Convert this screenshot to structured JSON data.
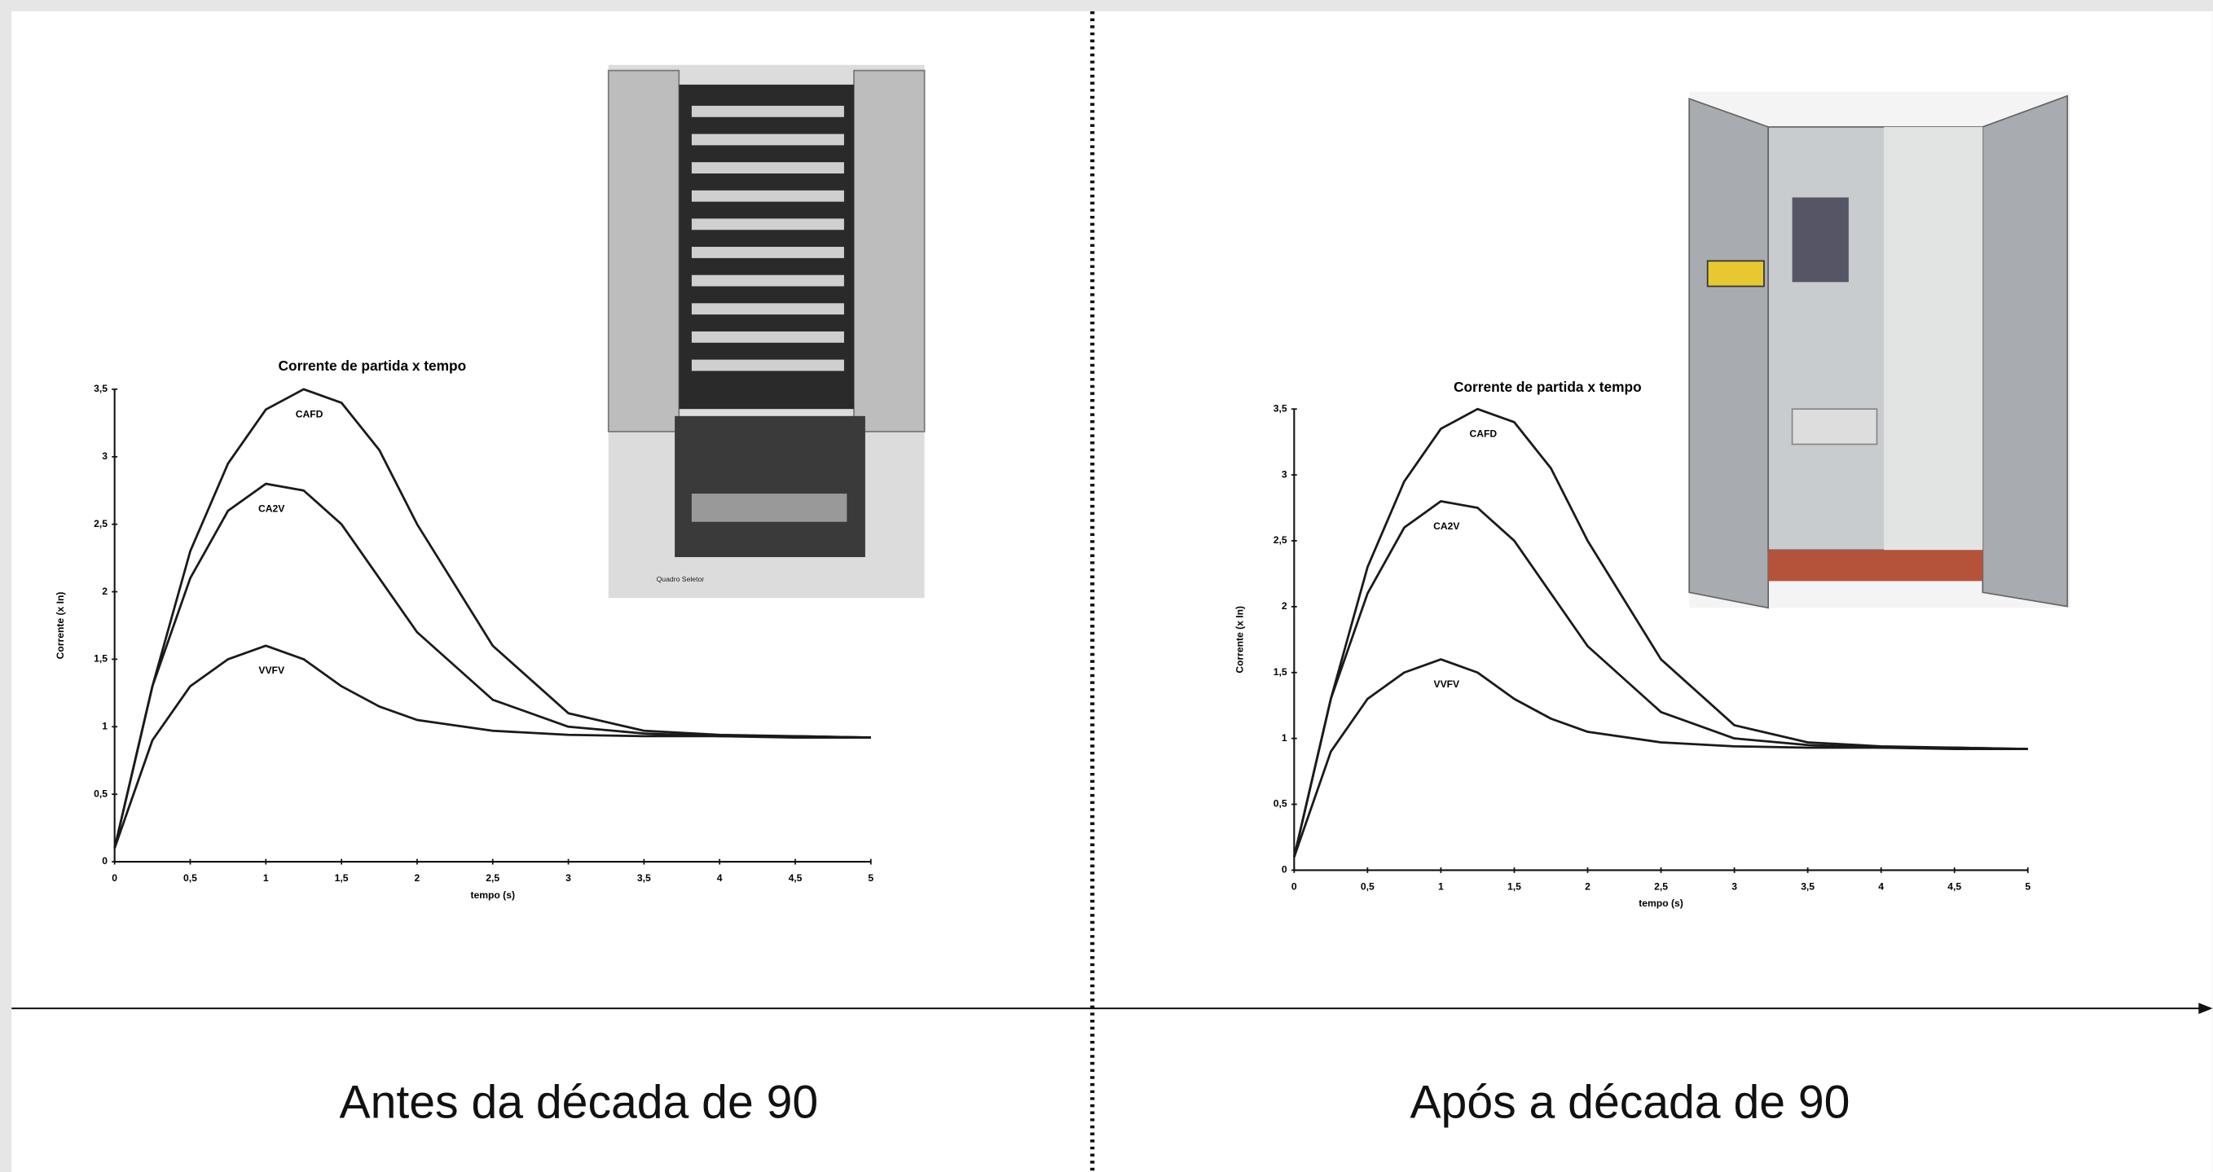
{
  "chart_data": [
    {
      "type": "line",
      "title": "Corrente de partida x tempo",
      "x_label": "tempo (s)",
      "y_label": "Corrente (x In)",
      "x": [
        0,
        0.25,
        0.5,
        0.75,
        1,
        1.25,
        1.5,
        1.75,
        2,
        2.5,
        3,
        3.5,
        4,
        4.5,
        5
      ],
      "series": [
        {
          "name": "CAFD",
          "color": "#1a1a1a",
          "values": [
            0.1,
            1.3,
            2.3,
            2.95,
            3.35,
            3.5,
            3.4,
            3.05,
            2.5,
            1.6,
            1.1,
            0.97,
            0.94,
            0.93,
            0.92
          ]
        },
        {
          "name": "CA2V",
          "color": "#1a1a1a",
          "values": [
            0.1,
            1.3,
            2.1,
            2.6,
            2.8,
            2.75,
            2.5,
            2.1,
            1.7,
            1.2,
            1.0,
            0.95,
            0.93,
            0.93,
            0.92
          ]
        },
        {
          "name": "VVFV",
          "color": "#1a1a1a",
          "values": [
            0.1,
            0.9,
            1.3,
            1.5,
            1.6,
            1.5,
            1.3,
            1.15,
            1.05,
            0.97,
            0.94,
            0.93,
            0.93,
            0.92,
            0.92
          ]
        }
      ],
      "xlim": [
        0,
        5
      ],
      "ylim": [
        0,
        3.5
      ],
      "xticks": [
        0,
        {
          "value": 0.5,
          "label": "0,5"
        },
        1,
        {
          "value": 1.5,
          "label": "1,5"
        },
        2,
        {
          "value": 2.5,
          "label": "2,5"
        },
        3,
        {
          "value": 3.5,
          "label": "3,5"
        },
        4,
        {
          "value": 4.5,
          "label": "4,5"
        },
        5
      ],
      "yticks": [
        0,
        {
          "value": 0.5,
          "label": "0,5"
        },
        1,
        {
          "value": 1.5,
          "label": "1,5"
        },
        2,
        {
          "value": 2.5,
          "label": "2,5"
        },
        3,
        {
          "value": 3.5,
          "label": "3,5"
        }
      ],
      "grid": false
    },
    {
      "type": "line",
      "title": "Corrente de partida x tempo",
      "x_label": "tempo (s)",
      "y_label": "Corrente (x In)",
      "x": [
        0,
        0.25,
        0.5,
        0.75,
        1,
        1.25,
        1.5,
        1.75,
        2,
        2.5,
        3,
        3.5,
        4,
        4.5,
        5
      ],
      "series": [
        {
          "name": "CAFD",
          "color": "#1a1a1a",
          "values": [
            0.1,
            1.3,
            2.3,
            2.95,
            3.35,
            3.5,
            3.4,
            3.05,
            2.5,
            1.6,
            1.1,
            0.97,
            0.94,
            0.93,
            0.92
          ]
        },
        {
          "name": "CA2V",
          "color": "#1a1a1a",
          "values": [
            0.1,
            1.3,
            2.1,
            2.6,
            2.8,
            2.75,
            2.5,
            2.1,
            1.7,
            1.2,
            1.0,
            0.95,
            0.93,
            0.93,
            0.92
          ]
        },
        {
          "name": "VVFV",
          "color": "#1a1a1a",
          "values": [
            0.1,
            0.9,
            1.3,
            1.5,
            1.6,
            1.5,
            1.3,
            1.15,
            1.05,
            0.97,
            0.94,
            0.93,
            0.93,
            0.92,
            0.92
          ]
        }
      ],
      "xlim": [
        0,
        5
      ],
      "ylim": [
        0,
        3.5
      ],
      "xticks": [
        0,
        {
          "value": 0.5,
          "label": "0,5"
        },
        1,
        {
          "value": 1.5,
          "label": "1,5"
        },
        2,
        {
          "value": 2.5,
          "label": "2,5"
        },
        3,
        {
          "value": 3.5,
          "label": "3,5"
        },
        4,
        {
          "value": 4.5,
          "label": "4,5"
        },
        5
      ],
      "yticks": [
        0,
        {
          "value": 0.5,
          "label": "0,5"
        },
        1,
        {
          "value": 1.5,
          "label": "1,5"
        },
        2,
        {
          "value": 2.5,
          "label": "2,5"
        },
        3,
        {
          "value": 3.5,
          "label": "3,5"
        }
      ],
      "grid": false
    }
  ],
  "captions": [
    "Antes da década de 90",
    "Após a década de 90"
  ],
  "photo_label": "Quadro Seletor"
}
